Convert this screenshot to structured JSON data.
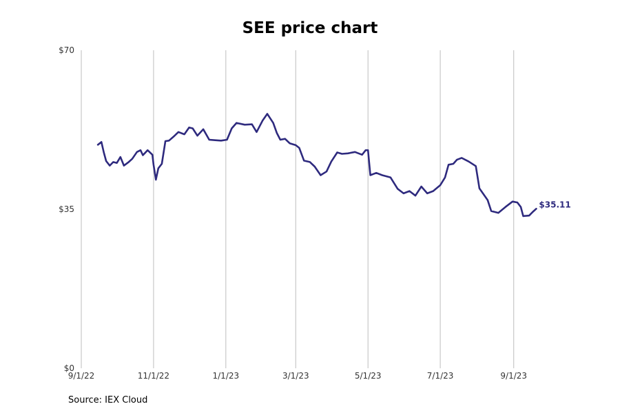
{
  "chart_data": {
    "type": "line",
    "title": "SEE price chart",
    "xlabel": "",
    "ylabel": "",
    "source": "Source: IEX Cloud",
    "line_color": "#2e2a7e",
    "grid_color": "#bdbdbd",
    "grid": "vertical",
    "x_start": "2022-09-01",
    "x_end": "2023-10-20",
    "ylim": [
      0,
      70
    ],
    "y_ticks": [
      {
        "value": 0,
        "label": "$0"
      },
      {
        "value": 35,
        "label": "$35"
      },
      {
        "value": 70,
        "label": "$70"
      }
    ],
    "x_ticks": [
      {
        "date": "2022-09-01",
        "label": "9/1/22"
      },
      {
        "date": "2022-11-01",
        "label": "11/1/22"
      },
      {
        "date": "2023-01-01",
        "label": "1/1/23"
      },
      {
        "date": "2023-03-01",
        "label": "3/1/23"
      },
      {
        "date": "2023-05-01",
        "label": "5/1/23"
      },
      {
        "date": "2023-07-01",
        "label": "7/1/23"
      },
      {
        "date": "2023-09-01",
        "label": "9/1/23"
      }
    ],
    "last_value_label": "$35.11",
    "series": [
      {
        "points": [
          [
            "2022-09-15",
            49.2
          ],
          [
            "2022-09-18",
            49.8
          ],
          [
            "2022-09-20",
            47.5
          ],
          [
            "2022-09-22",
            45.6
          ],
          [
            "2022-09-25",
            44.6
          ],
          [
            "2022-09-28",
            45.4
          ],
          [
            "2022-10-01",
            45.2
          ],
          [
            "2022-10-04",
            46.5
          ],
          [
            "2022-10-07",
            44.6
          ],
          [
            "2022-10-11",
            45.4
          ],
          [
            "2022-10-14",
            46.1
          ],
          [
            "2022-10-18",
            47.6
          ],
          [
            "2022-10-21",
            48.0
          ],
          [
            "2022-10-23",
            46.9
          ],
          [
            "2022-10-27",
            48.0
          ],
          [
            "2022-10-31",
            47.0
          ],
          [
            "2022-11-01",
            44.8
          ],
          [
            "2022-11-03",
            41.5
          ],
          [
            "2022-11-05",
            44.0
          ],
          [
            "2022-11-08",
            45.0
          ],
          [
            "2022-11-11",
            50.0
          ],
          [
            "2022-11-14",
            50.1
          ],
          [
            "2022-11-18",
            51.0
          ],
          [
            "2022-11-22",
            52.0
          ],
          [
            "2022-11-27",
            51.5
          ],
          [
            "2022-12-01",
            53.0
          ],
          [
            "2022-12-04",
            52.8
          ],
          [
            "2022-12-08",
            51.2
          ],
          [
            "2022-12-13",
            52.6
          ],
          [
            "2022-12-18",
            50.3
          ],
          [
            "2022-12-23",
            50.2
          ],
          [
            "2022-12-28",
            50.1
          ],
          [
            "2023-01-02",
            50.3
          ],
          [
            "2023-01-06",
            52.8
          ],
          [
            "2023-01-10",
            54.0
          ],
          [
            "2023-01-17",
            53.6
          ],
          [
            "2023-01-23",
            53.7
          ],
          [
            "2023-01-27",
            52.0
          ],
          [
            "2023-02-01",
            54.5
          ],
          [
            "2023-02-05",
            56.0
          ],
          [
            "2023-02-10",
            54.0
          ],
          [
            "2023-02-13",
            51.8
          ],
          [
            "2023-02-16",
            50.3
          ],
          [
            "2023-02-20",
            50.5
          ],
          [
            "2023-02-24",
            49.5
          ],
          [
            "2023-03-01",
            49.1
          ],
          [
            "2023-03-04",
            48.5
          ],
          [
            "2023-03-08",
            45.7
          ],
          [
            "2023-03-13",
            45.4
          ],
          [
            "2023-03-17",
            44.4
          ],
          [
            "2023-03-22",
            42.5
          ],
          [
            "2023-03-27",
            43.3
          ],
          [
            "2023-03-31",
            45.5
          ],
          [
            "2023-04-05",
            47.5
          ],
          [
            "2023-04-09",
            47.2
          ],
          [
            "2023-04-14",
            47.3
          ],
          [
            "2023-04-20",
            47.6
          ],
          [
            "2023-04-26",
            47.0
          ],
          [
            "2023-04-29",
            48.0
          ],
          [
            "2023-05-01",
            48.0
          ],
          [
            "2023-05-03",
            42.5
          ],
          [
            "2023-05-08",
            43.0
          ],
          [
            "2023-05-13",
            42.5
          ],
          [
            "2023-05-20",
            42.0
          ],
          [
            "2023-05-26",
            39.5
          ],
          [
            "2023-05-31",
            38.5
          ],
          [
            "2023-06-05",
            39.0
          ],
          [
            "2023-06-10",
            38.0
          ],
          [
            "2023-06-15",
            40.0
          ],
          [
            "2023-06-20",
            38.5
          ],
          [
            "2023-06-25",
            39.0
          ],
          [
            "2023-07-01",
            40.3
          ],
          [
            "2023-07-05",
            42.0
          ],
          [
            "2023-07-08",
            44.8
          ],
          [
            "2023-07-12",
            45.0
          ],
          [
            "2023-07-15",
            45.9
          ],
          [
            "2023-07-19",
            46.3
          ],
          [
            "2023-07-25",
            45.5
          ],
          [
            "2023-07-31",
            44.5
          ],
          [
            "2023-08-03",
            39.6
          ],
          [
            "2023-08-10",
            37.0
          ],
          [
            "2023-08-13",
            34.6
          ],
          [
            "2023-08-19",
            34.2
          ],
          [
            "2023-08-25",
            35.5
          ],
          [
            "2023-08-31",
            36.7
          ],
          [
            "2023-09-04",
            36.5
          ],
          [
            "2023-09-07",
            35.5
          ],
          [
            "2023-09-09",
            33.5
          ],
          [
            "2023-09-14",
            33.6
          ],
          [
            "2023-09-17",
            34.4
          ],
          [
            "2023-09-20",
            35.11
          ]
        ]
      }
    ]
  }
}
